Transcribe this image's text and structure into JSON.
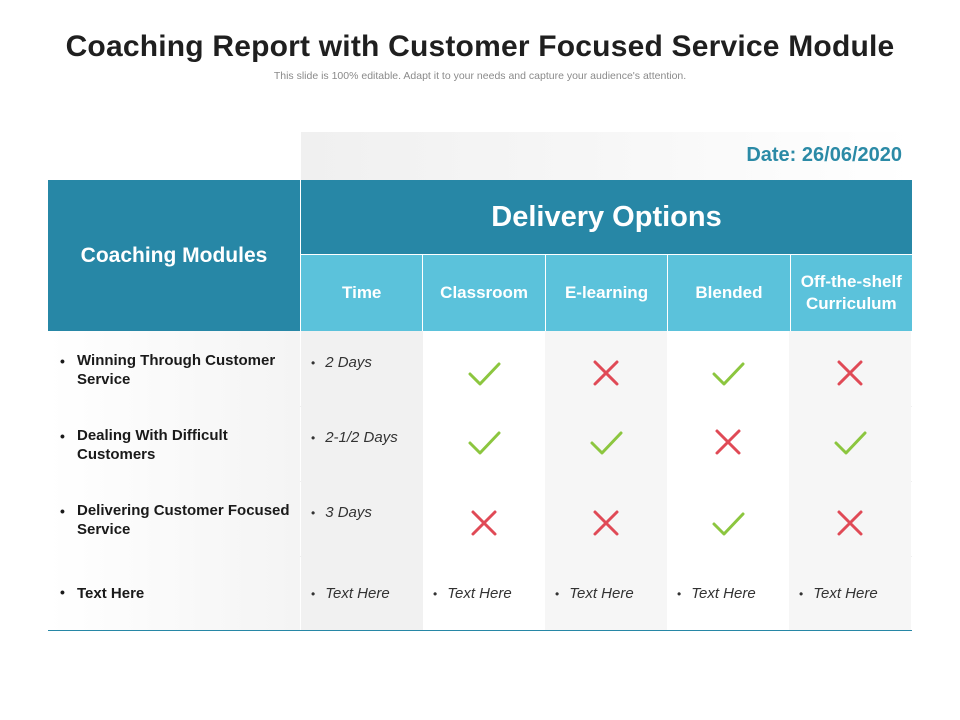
{
  "title": "Coaching Report with Customer Focused Service Module",
  "subtitle": "This slide is 100% editable. Adapt it to your needs and capture your audience's attention.",
  "date": "Date: 26/06/2020",
  "modules_header": "Coaching Modules",
  "delivery_header": "Delivery Options",
  "columns": [
    "Time",
    "Classroom",
    "E-learning",
    "Blended",
    "Off-the-shelf Curriculum"
  ],
  "rows": [
    {
      "module": "Winning Through Customer Service",
      "time": "2 Days",
      "classroom": "check",
      "elearning": "cross",
      "blended": "check",
      "offshelf": "cross"
    },
    {
      "module": "Dealing With Difficult Customers",
      "time": "2-1/2 Days",
      "classroom": "check",
      "elearning": "check",
      "blended": "cross",
      "offshelf": "check"
    },
    {
      "module": "Delivering Customer Focused Service",
      "time": "3 Days",
      "classroom": "cross",
      "elearning": "cross",
      "blended": "check",
      "offshelf": "cross"
    },
    {
      "module": "Text Here",
      "time": "Text Here",
      "classroom": "Text Here",
      "elearning": "Text Here",
      "blended": "Text Here",
      "offshelf": "Text Here"
    }
  ],
  "bullet": "•",
  "colors": {
    "header": "#2787a6",
    "subheader": "#5bc2db",
    "check": "#8cc63f",
    "cross": "#e04a56",
    "date": "#2b8aa6"
  }
}
